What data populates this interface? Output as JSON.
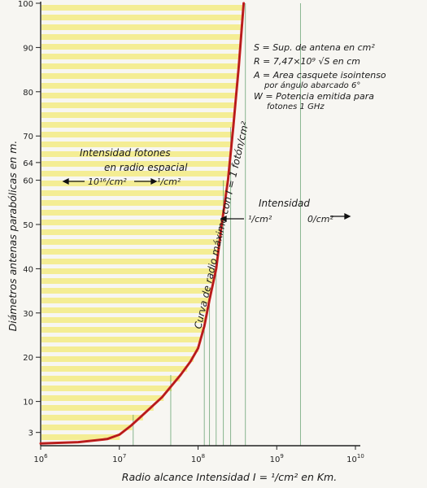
{
  "chart_data": {
    "type": "line",
    "title": "",
    "xlabel": "Radio alcance Intensidad I = ¹/cm² en Km.",
    "ylabel": "Diámetros antenas parabólicas en m.",
    "x_scale": "log",
    "xlim": [
      1000000,
      10000000000
    ],
    "ylim": [
      0,
      100
    ],
    "x_ticks": [
      {
        "value": 1000000,
        "base": "10",
        "exp": "6"
      },
      {
        "value": 10000000,
        "base": "10",
        "exp": "7"
      },
      {
        "value": 100000000,
        "base": "10",
        "exp": "8"
      },
      {
        "value": 1000000000,
        "base": "10",
        "exp": "9"
      },
      {
        "value": 10000000000,
        "base": "10",
        "exp": "10"
      }
    ],
    "y_ticks": [
      3,
      10,
      20,
      30,
      40,
      50,
      60,
      64,
      70,
      80,
      90,
      100
    ],
    "y_tick_labels": [
      "3",
      "10",
      "20",
      "30",
      "40",
      "50",
      "60",
      "64",
      "70",
      "80",
      "90",
      "100"
    ],
    "series": [
      {
        "name": "Curva de radio máximo con I = 1 fotón/cm²",
        "color": "#cc2222",
        "x": [
          1000000,
          3000000,
          7000000,
          10000000,
          14000000,
          20000000,
          35000000,
          60000000,
          80000000,
          100000000,
          120000000,
          140000000,
          170000000,
          200000000,
          240000000,
          280000000,
          330000000,
          380000000
        ],
        "y": [
          0.5,
          0.8,
          1.5,
          2.5,
          4.5,
          7,
          11,
          16,
          19,
          22,
          27,
          33,
          40,
          50,
          60,
          72,
          86,
          100
        ]
      }
    ],
    "reference_lines_x": [
      15000000,
      45000000,
      120000000,
      140000000,
      170000000,
      210000000,
      260000000,
      400000000,
      2000000000
    ],
    "reference_line_color": "#3f8a4e",
    "shaded_region_color": "#f3ec8a",
    "grid": false
  },
  "annotations": {
    "legend_lines": [
      "S = Sup. de antena en cm²",
      "R = 7,47×10⁹ √S  en cm",
      "A = Area casquete isointenso",
      "por ángulo abarcado 6°",
      "W = Potencia emitida para",
      "fotones  1 GHz"
    ],
    "photon_intensity_line1": "Intensidad fotones",
    "photon_intensity_line2": "en radio espacial",
    "value_high": "10¹⁶/cm²",
    "value_one": "¹/cm²",
    "intensity_label": "Intensidad",
    "value_one_right": "¹/cm²",
    "value_zero": "0/cm²",
    "curve_label": "Curva de radio máximo con I = 1 fotón/cm²"
  }
}
